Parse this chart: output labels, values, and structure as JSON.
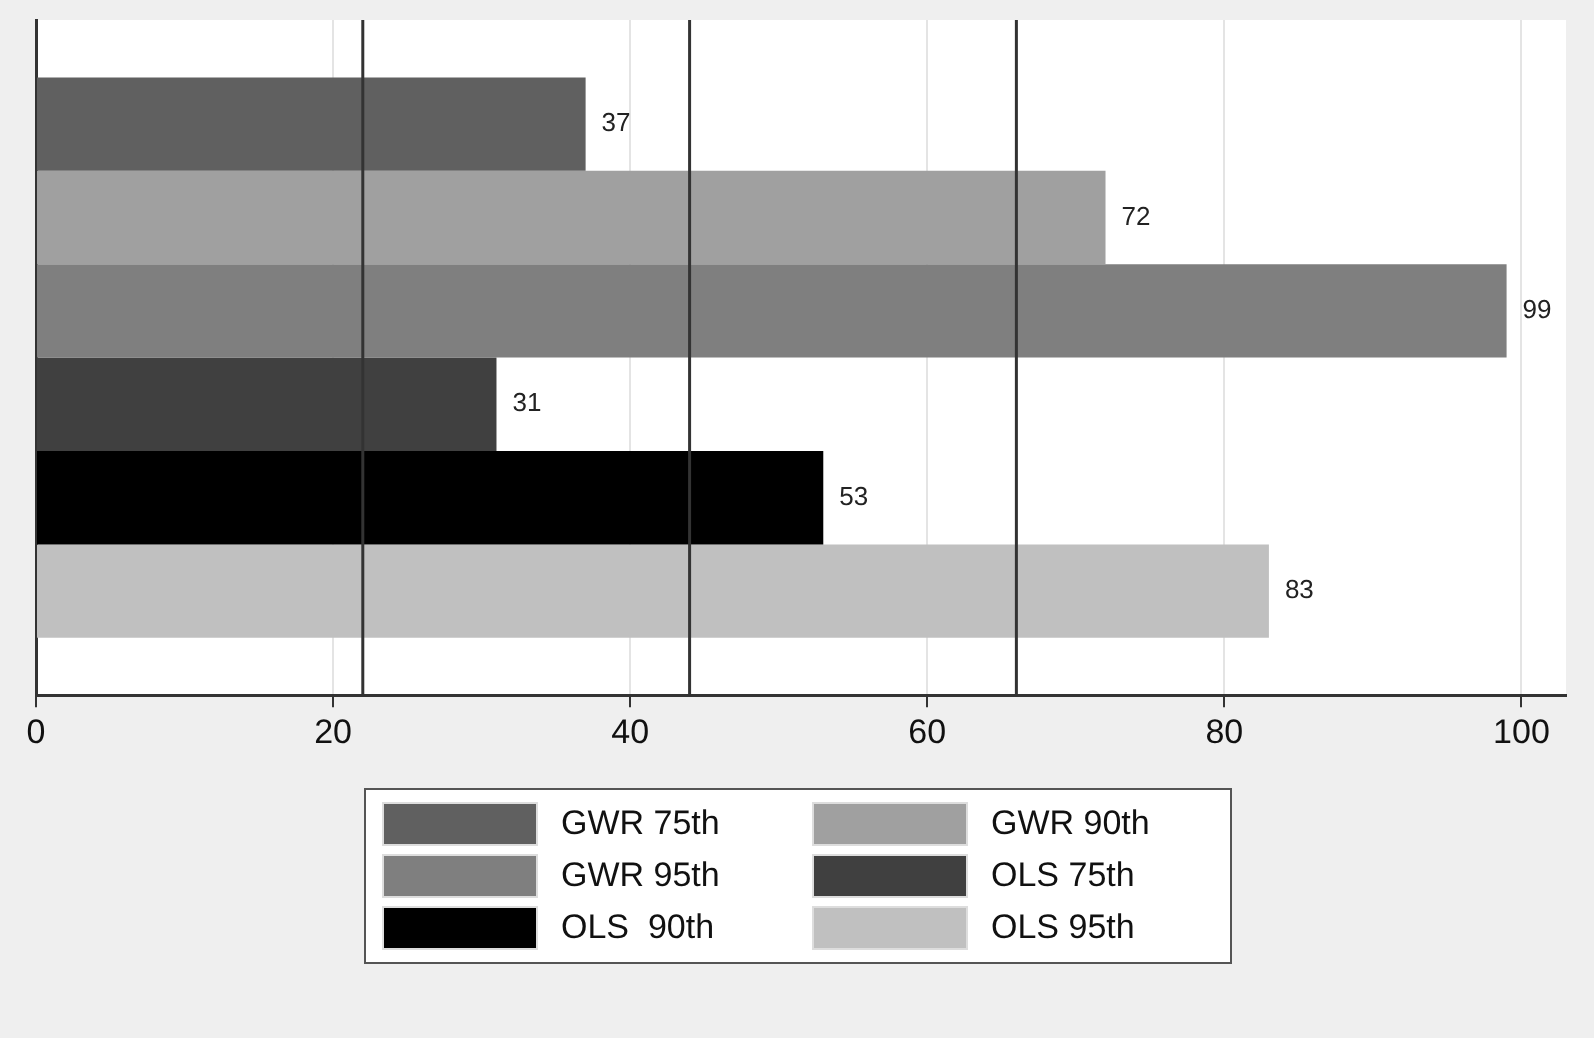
{
  "chart_data": {
    "type": "bar",
    "orientation": "horizontal",
    "categories": [
      null
    ],
    "series": [
      {
        "name": "GWR 75th",
        "color": "#606060",
        "values": [
          37
        ]
      },
      {
        "name": "GWR 90th",
        "color": "#a0a0a0",
        "values": [
          72
        ]
      },
      {
        "name": "GWR 95th",
        "color": "#7f7f7f",
        "values": [
          99
        ]
      },
      {
        "name": "OLS 75th",
        "color": "#404040",
        "values": [
          31
        ]
      },
      {
        "name": "OLS  90th",
        "color": "#000000",
        "values": [
          53
        ]
      },
      {
        "name": "OLS 95th",
        "color": "#c0c0c0",
        "values": [
          83
        ]
      }
    ],
    "xlim": [
      0,
      103
    ],
    "xticks": [
      0,
      20,
      40,
      60,
      80,
      100
    ],
    "grid": "x",
    "tick_labels": "x",
    "data_labels": true,
    "legend": "bottom",
    "ref_lines": [
      {
        "axis": "x",
        "value": 22,
        "color": "#333333"
      },
      {
        "axis": "x",
        "value": 44,
        "color": "#333333"
      },
      {
        "axis": "x",
        "value": 66,
        "color": "#333333"
      }
    ]
  }
}
